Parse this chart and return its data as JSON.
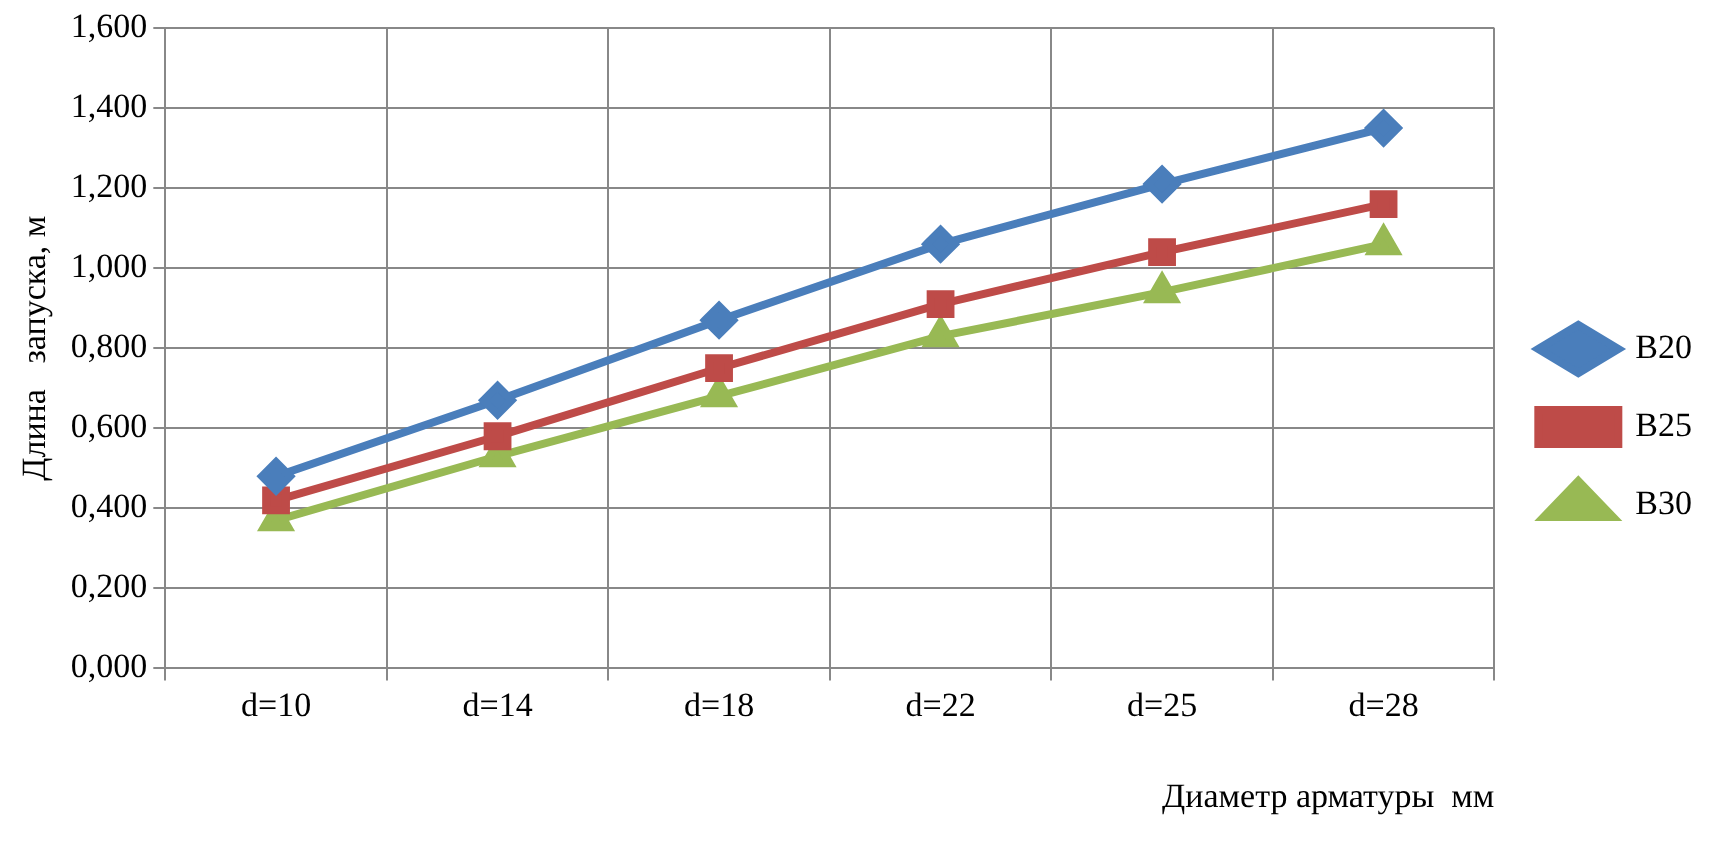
{
  "chart_data": {
    "type": "line",
    "xlabel": "Диаметр арматуры  мм",
    "ylabel": "Длина   запуска, м",
    "categories": [
      "d=10",
      "d=14",
      "d=18",
      "d=22",
      "d=25",
      "d=28"
    ],
    "series": [
      {
        "name": "B20",
        "color": "#4a7ebb",
        "marker": "diamond",
        "values": [
          0.48,
          0.67,
          0.87,
          1.06,
          1.21,
          1.35
        ]
      },
      {
        "name": "B25",
        "color": "#be4b48",
        "marker": "square",
        "values": [
          0.42,
          0.58,
          0.75,
          0.91,
          1.04,
          1.16
        ]
      },
      {
        "name": "B30",
        "color": "#98b954",
        "marker": "triangle",
        "values": [
          0.37,
          0.53,
          0.68,
          0.83,
          0.94,
          1.06
        ]
      }
    ],
    "ylim": [
      0,
      1.6
    ],
    "yticks": [
      {
        "value": 0,
        "label": "0,000"
      },
      {
        "value": 0.2,
        "label": "0,200"
      },
      {
        "value": 0.4,
        "label": "0,400"
      },
      {
        "value": 0.6,
        "label": "0,600"
      },
      {
        "value": 0.8,
        "label": "0,800"
      },
      {
        "value": 1,
        "label": "1,000"
      },
      {
        "value": 1.2,
        "label": "1,200"
      },
      {
        "value": 1.4,
        "label": "1,400"
      },
      {
        "value": 1.6,
        "label": "1,600"
      }
    ],
    "grid": true,
    "legend": "right",
    "line_style": "solid"
  }
}
